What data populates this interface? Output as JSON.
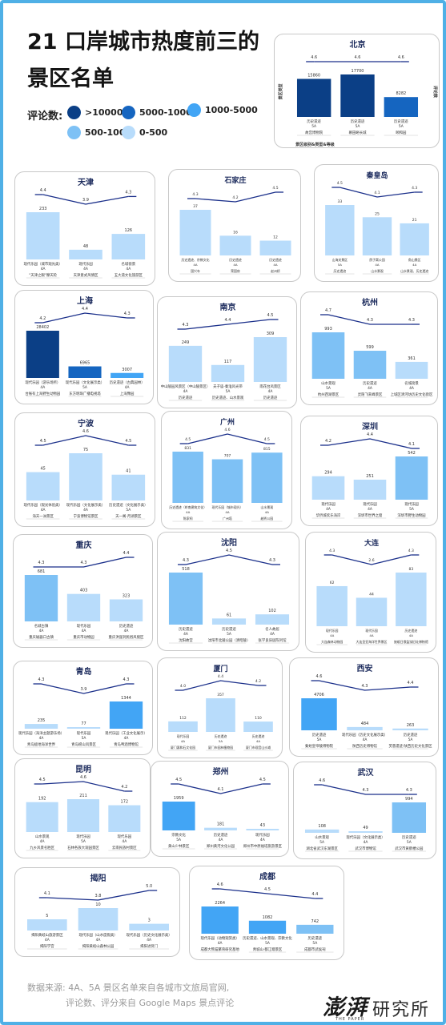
{
  "title": "21 口岸城市热度前三的景区名单",
  "legend": {
    "title": "评论数:",
    "items": [
      {
        "label": ">10000",
        "color": "#0b3f86"
      },
      {
        "label": "5000-10000",
        "color": "#1565c0"
      },
      {
        "label": "1000-5000",
        "color": "#42a5f5"
      },
      {
        "label": "500-1000",
        "color": "#7ec1f5"
      },
      {
        "label": "0-500",
        "color": "#b8dcfb"
      }
    ]
  },
  "footer": {
    "line1": "数据来源: 4A、5A 景区名单来自各城市文旅局官网,",
    "line2": "评论数、评分来自 Google Maps 景点评论"
  },
  "logo": {
    "brand": "澎湃",
    "inst": "研究所",
    "sub": "THE PAPER"
  },
  "chart_data": [
    {
      "type": "bar",
      "title": "北京",
      "left_label": "景区类型",
      "right_label": "评论数",
      "bottom_label": "景区级别&类型&等级",
      "categories": [
        "故宫博物院",
        "慕田峪长城",
        "颐和园"
      ],
      "values": [
        15860,
        17700,
        8282
      ],
      "ratings": [
        4.6,
        4.6,
        4.6
      ],
      "category_lines": [
        [
          "历史遗迹",
          "5A"
        ],
        [
          "历史遗迹",
          "5A"
        ],
        [
          "历史遗迹",
          "5A"
        ]
      ]
    },
    {
      "type": "bar",
      "title": "天津",
      "categories": [
        "\"天津之眼\"摩天轮",
        "天津意式风情区",
        "五大道文化旅游区"
      ],
      "values": [
        233,
        48,
        126
      ],
      "ratings": [
        4.4,
        3.9,
        4.3
      ],
      "category_lines": [
        [
          "现代乐园（城市观光类）",
          "4A"
        ],
        [
          "现代乐园",
          "4A"
        ],
        [
          "名城街景",
          "4A"
        ]
      ]
    },
    {
      "type": "bar",
      "title": "石家庄",
      "categories": [
        "国兴寺",
        "荣国府",
        "赵州桥"
      ],
      "values": [
        37,
        16,
        12
      ],
      "ratings": [
        4.3,
        4.2,
        4.5
      ],
      "category_lines": [
        [
          "历史遗迹、宗教文化",
          "4A"
        ],
        [
          "历史遗迹",
          "4A"
        ],
        [
          "历史遗迹",
          "4A"
        ]
      ]
    },
    {
      "type": "bar",
      "title": "秦皇岛",
      "categories": [
        "历史遗迹",
        "山水景观",
        "山水景观、历史遗迹"
      ],
      "values": [
        33,
        25,
        21
      ],
      "ratings": [
        4.5,
        4.1,
        4.3
      ],
      "category_lines": [
        [
          "山海关景区",
          "5A"
        ],
        [
          "鸽子窝公园",
          "4A"
        ],
        [
          "角山景区",
          "4A"
        ]
      ]
    },
    {
      "type": "bar",
      "title": "上海",
      "categories": [
        "台账有上海野生动物园",
        "东方明珠广播电视塔",
        "上海豫园"
      ],
      "values": [
        28402,
        6965,
        3007
      ],
      "ratings": [
        4.2,
        4.4,
        4.3
      ],
      "category_lines": [
        [
          "现代乐园（游乐场所）",
          "4A"
        ],
        [
          "现代乐园（文化展示类）",
          "5A"
        ],
        [
          "历史遗迹（古典园林）",
          "4A"
        ]
      ]
    },
    {
      "type": "bar",
      "title": "南京",
      "categories": [
        "历史遗迹",
        "历史遗迹、山水景观",
        "历史遗迹"
      ],
      "values": [
        249,
        117,
        309
      ],
      "ratings": [
        4.3,
        4.4,
        4.5
      ],
      "category_lines": [
        [
          "中山陵园风景区（中山陵景区）",
          "4A"
        ],
        [
          "夫子庙-秦淮风光带",
          "5A"
        ],
        [
          "雨花台风景区",
          "4A"
        ]
      ]
    },
    {
      "type": "bar",
      "title": "杭州",
      "categories": [
        "杭州西湖景区",
        "灵隐飞来峰景区",
        "上城区清河坊历史文化街区"
      ],
      "values": [
        993,
        599,
        361
      ],
      "ratings": [
        4.7,
        4.3,
        4.3
      ],
      "category_lines": [
        [
          "山水景观",
          "5A"
        ],
        [
          "历史遗迹",
          "4A"
        ],
        [
          "名城街景",
          "4A"
        ]
      ]
    },
    {
      "type": "bar",
      "title": "宁波",
      "categories": [
        "海天一洲景区",
        "宁波博物馆景区",
        "天一阁·月湖景区"
      ],
      "values": [
        45,
        75,
        41
      ],
      "ratings": [
        4.5,
        4.6,
        4.5
      ],
      "category_lines": [
        [
          "现代乐园（观光体验类）",
          "4A"
        ],
        [
          "现代乐园（文化展示类）",
          "4A"
        ],
        [
          "历史遗迹（文化展示类）",
          "5A"
        ]
      ]
    },
    {
      "type": "bar",
      "title": "广州",
      "categories": [
        "陈家祠",
        "广州塔",
        "越秀公园"
      ],
      "values": [
        831,
        707,
        815
      ],
      "ratings": [
        4.5,
        4.6,
        4.5
      ],
      "category_lines": [
        [
          "历史遗迹（岭南建筑文化）",
          "4A"
        ],
        [
          "现代乐园（城市观光）",
          "4A"
        ],
        [
          "山水景观",
          "4A"
        ]
      ]
    },
    {
      "type": "bar",
      "title": "深圳",
      "categories": [
        "华侨城欢乐海岸",
        "深圳市世界之窗",
        "深圳市野生动物园"
      ],
      "values": [
        294,
        251,
        542
      ],
      "ratings": [
        4.2,
        4.4,
        4.1
      ],
      "category_lines": [
        [
          "现代乐园",
          "4A"
        ],
        [
          "现代乐园",
          "4A"
        ],
        [
          "现代乐园",
          "5A"
        ]
      ]
    },
    {
      "type": "bar",
      "title": "重庆",
      "categories": [
        "重庆磁器口古镇",
        "重庆市动物园",
        "重庆洪崖洞民俗风貌区"
      ],
      "values": [
        681,
        403,
        323
      ],
      "ratings": [
        4.3,
        4.3,
        4.4
      ],
      "category_lines": [
        [
          "名城古镇",
          "4A"
        ],
        [
          "现代乐园",
          "4A"
        ],
        [
          "历史遗迹",
          "4A"
        ]
      ]
    },
    {
      "type": "bar",
      "title": "沈阳",
      "categories": [
        "沈阳故宫",
        "沈阳市北陵公园（清昭陵）",
        "张学良旧居陈列馆"
      ],
      "values": [
        518,
        61,
        102
      ],
      "ratings": [
        4.3,
        4.5,
        4.3
      ],
      "category_lines": [
        [
          "历史遗迹",
          "4A"
        ],
        [
          "历史遗迹",
          "5A"
        ],
        [
          "名人故居",
          "4A"
        ]
      ]
    },
    {
      "type": "bar",
      "title": "大连",
      "categories": [
        "大连森林动物园",
        "大连圣亚海洋世界景区",
        "旅顺日俄监狱旧址博物馆"
      ],
      "values": [
        62,
        44,
        83
      ],
      "ratings": [
        4.3,
        2.6,
        4.3
      ],
      "category_lines": [
        [
          "现代乐园",
          "4A"
        ],
        [
          "现代乐园",
          "4A"
        ],
        [
          "历史遗迹",
          "4A"
        ]
      ]
    },
    {
      "type": "bar",
      "title": "青岛",
      "categories": [
        "青岛极地海洋世界",
        "青岛崂山风景区",
        "青岛啤酒博物馆"
      ],
      "values": [
        235,
        77,
        1344
      ],
      "ratings": [
        4.3,
        3.9,
        4.3
      ],
      "category_lines": [
        [
          "现代乐园（海洋主题游乐场）",
          "4A"
        ],
        [
          "现代乐园",
          "5A"
        ],
        [
          "现代乐园（工业文化展示）",
          "4A"
        ]
      ]
    },
    {
      "type": "bar",
      "title": "厦门",
      "categories": [
        "厦门惠和石文化园",
        "厦门市园林植物园",
        "厦门市观音山沙滩"
      ],
      "values": [
        112,
        357,
        110
      ],
      "ratings": [
        4.0,
        4.4,
        4.2
      ],
      "category_lines": [
        [
          "现代乐园",
          "4A"
        ],
        [
          "历史遗迹",
          "5A"
        ],
        [
          "历史遗迹",
          "4A"
        ]
      ]
    },
    {
      "type": "bar",
      "title": "西安",
      "categories": [
        "秦始皇帝陵博物院",
        "陕西历史博物馆",
        "芙蓉遗迹·陕西历史文化景区"
      ],
      "values": [
        4706,
        484,
        263
      ],
      "ratings": [
        4.6,
        4.3,
        4.4
      ],
      "category_lines": [
        [
          "历史遗迹",
          "5A"
        ],
        [
          "现代乐园（历史文化展示类）",
          "4A"
        ],
        [
          "历史遗迹",
          "5A"
        ]
      ]
    },
    {
      "type": "bar",
      "title": "昆明",
      "categories": [
        "九乡风景名胜区",
        "石林各族大观园景区",
        "云南民族村景区"
      ],
      "values": [
        192,
        211,
        172
      ],
      "ratings": [
        4.5,
        4.6,
        4.2
      ],
      "category_lines": [
        [
          "山水景观",
          "4A"
        ],
        [
          "现代乐园",
          "5A"
        ],
        [
          "现代乐园",
          "4A"
        ]
      ]
    },
    {
      "type": "bar",
      "title": "郑州",
      "categories": [
        "黄山少林景区",
        "郑州黄河文化公园",
        "郑州市中原福塔旅游景区"
      ],
      "values": [
        1959,
        181,
        43
      ],
      "ratings": [
        4.5,
        4.1,
        4.5
      ],
      "category_lines": [
        [
          "宗教文化",
          "5A"
        ],
        [
          "历史遗迹",
          "4A"
        ],
        [
          "现代乐园",
          "4A"
        ]
      ]
    },
    {
      "type": "bar",
      "title": "武汉",
      "categories": [
        "湖北省武汉东湖景区",
        "武汉市博物馆",
        "武汉市黄鹤楼公园"
      ],
      "values": [
        108,
        49,
        994
      ],
      "ratings": [
        4.6,
        4.3,
        4.3
      ],
      "category_lines": [
        [
          "山水景观",
          "5A"
        ],
        [
          "现代乐园（文化展示类）",
          "4A"
        ],
        [
          "历史遗迹",
          "5A"
        ]
      ]
    },
    {
      "type": "bar",
      "title": "揭阳",
      "categories": [
        "揭阳学宫",
        "揭阳黄岐山森林公园",
        "揭阳进贤门"
      ],
      "values": [
        5,
        10,
        3
      ],
      "ratings": [
        4.1,
        3.8,
        5.0
      ],
      "category_lines": [
        [
          "揭阳黄岐山旅游景区",
          "4A"
        ],
        [
          "现代乐园（山水度假类）",
          "4A"
        ],
        [
          "现代乐园（历史文化展示类）",
          "4A"
        ]
      ]
    },
    {
      "type": "bar",
      "title": "成都",
      "categories": [
        "成都大熊猫繁育研究基地",
        "青城山·都江堰景区",
        "成都市武侯祠"
      ],
      "values": [
        2264,
        1082,
        742
      ],
      "ratings": [
        4.6,
        4.5,
        4.4
      ],
      "category_lines": [
        [
          "现代乐园（动物观赏类）",
          "4A"
        ],
        [
          "历史遗迹、山水景观、宗教文化",
          "5A"
        ],
        [
          "历史遗迹",
          "5A"
        ]
      ]
    }
  ]
}
